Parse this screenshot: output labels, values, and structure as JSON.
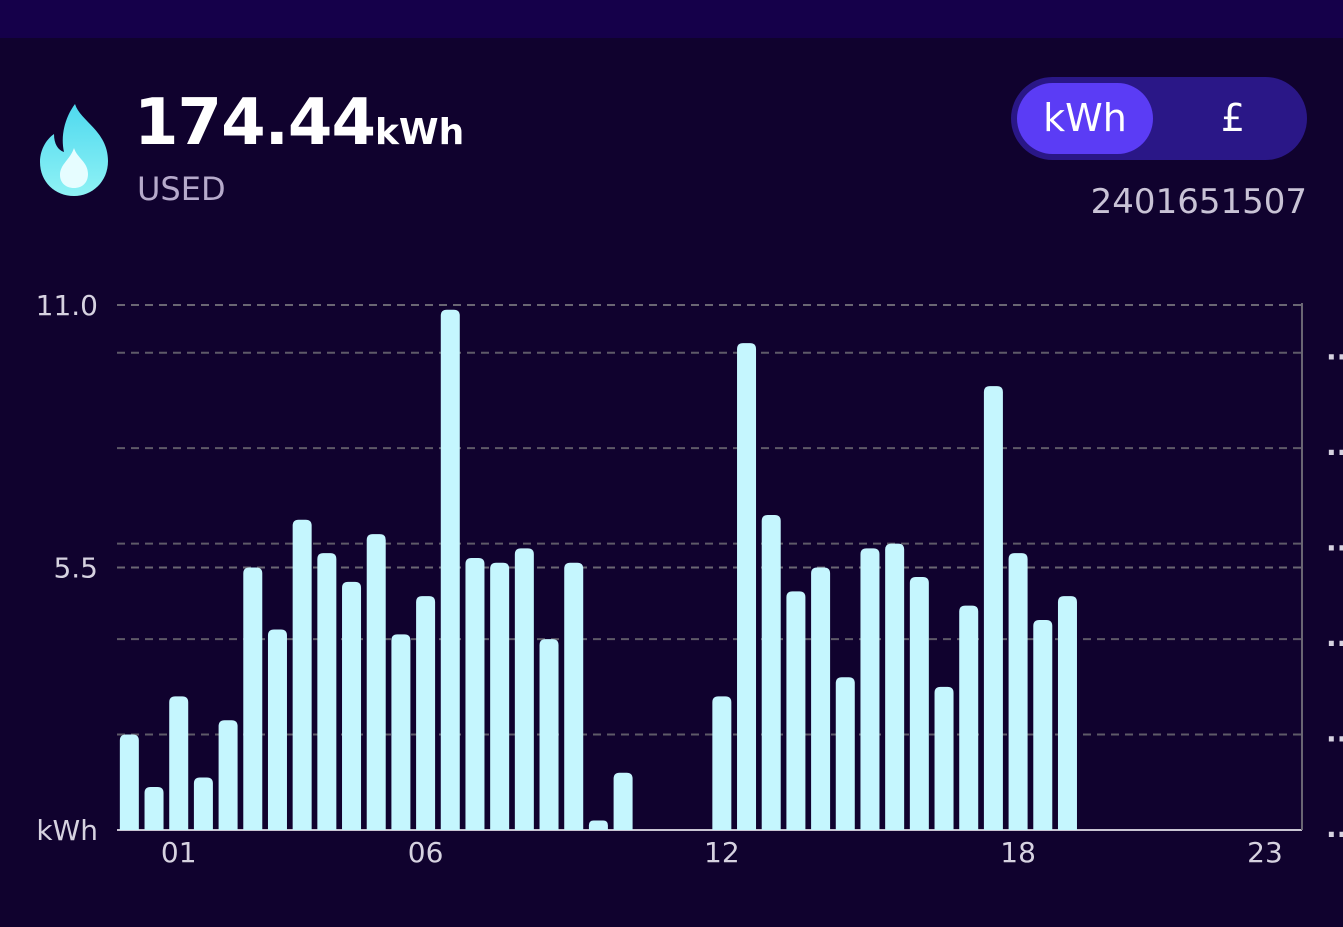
{
  "header": {
    "value": "174.44",
    "unit": "kWh",
    "caption": "USED"
  },
  "toggle": {
    "options": [
      "kWh",
      "£"
    ],
    "active": 0
  },
  "meter_id": "2401651507",
  "chart_data": {
    "type": "bar",
    "categories": [
      null,
      null,
      "01",
      null,
      null,
      null,
      null,
      null,
      null,
      null,
      null,
      null,
      "06",
      null,
      null,
      null,
      null,
      null,
      null,
      null,
      null,
      null,
      null,
      null,
      "12",
      null,
      null,
      null,
      null,
      null,
      null,
      null,
      null,
      null,
      null,
      null,
      "18",
      null,
      null,
      null,
      null,
      null,
      null,
      null,
      null,
      null,
      "23",
      null
    ],
    "values": [
      2.0,
      0.9,
      2.8,
      1.1,
      2.3,
      5.5,
      4.2,
      6.5,
      5.8,
      5.2,
      6.2,
      4.1,
      4.9,
      10.9,
      5.7,
      5.6,
      5.9,
      4.0,
      5.6,
      0.2,
      1.2,
      null,
      null,
      null,
      2.8,
      10.2,
      6.6,
      5.0,
      5.5,
      3.2,
      5.9,
      6.0,
      5.3,
      3.0,
      4.7,
      9.3,
      5.8,
      4.4,
      4.9,
      null,
      null,
      null,
      null,
      null,
      null,
      null,
      null,
      null
    ],
    "color": "#c5f6fe",
    "ylim": [
      0,
      11
    ],
    "yticks": [
      {
        "value": 0,
        "label": "kWh"
      },
      5.5,
      {
        "value": 11,
        "label": "11.0"
      }
    ],
    "y2lim": [
      0,
      5.5
    ],
    "y2ticks": [
      {
        "value": 0,
        "label": "··"
      },
      {
        "value": 1,
        "label": "··"
      },
      {
        "value": 2,
        "label": "··"
      },
      {
        "value": 3,
        "label": "··"
      },
      {
        "value": 4,
        "label": "··"
      },
      {
        "value": 5,
        "label": "··"
      }
    ],
    "grid": true
  }
}
